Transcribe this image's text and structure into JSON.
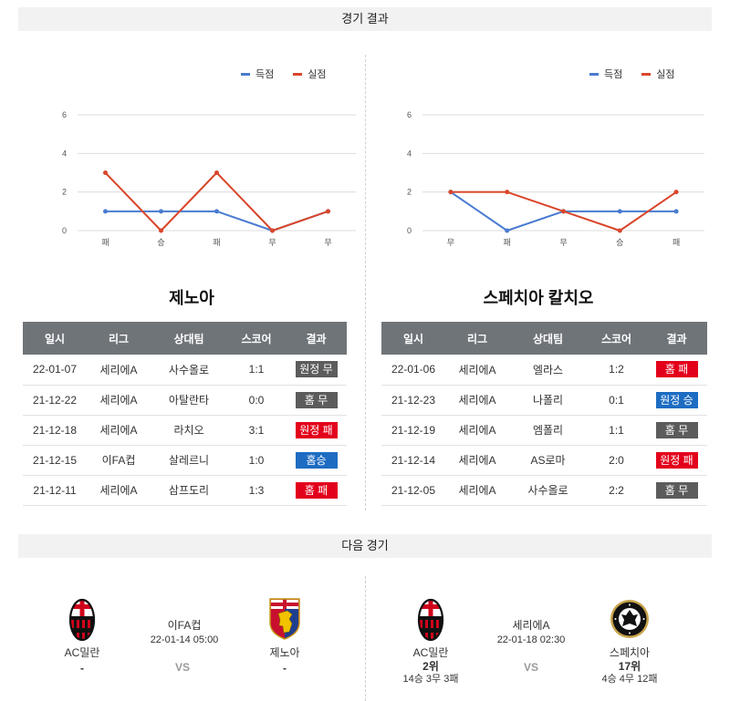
{
  "sections": {
    "results_title": "경기 결과",
    "next_title": "다음 경기"
  },
  "chart_data": [
    {
      "type": "line",
      "categories": [
        "패",
        "승",
        "패",
        "무",
        "무"
      ],
      "series": [
        {
          "name": "득점",
          "values": [
            1,
            1,
            1,
            0,
            1
          ],
          "color": "#4a7bd0"
        },
        {
          "name": "실점",
          "values": [
            3,
            0,
            3,
            0,
            1
          ],
          "color": "#d9462b"
        }
      ],
      "yticks": [
        0,
        2,
        4,
        6
      ],
      "ylim": [
        0,
        6
      ],
      "grid": true,
      "legend": "top-right"
    },
    {
      "type": "line",
      "categories": [
        "무",
        "패",
        "무",
        "승",
        "패"
      ],
      "series": [
        {
          "name": "득점",
          "values": [
            2,
            0,
            1,
            1,
            1
          ],
          "color": "#4a7bd0"
        },
        {
          "name": "실점",
          "values": [
            2,
            2,
            1,
            0,
            2
          ],
          "color": "#d9462b"
        }
      ],
      "yticks": [
        0,
        2,
        4,
        6
      ],
      "ylim": [
        0,
        6
      ],
      "grid": true,
      "legend": "top-right"
    }
  ],
  "table_headers": [
    "일시",
    "리그",
    "상대팀",
    "스코어",
    "결과"
  ],
  "teams": [
    {
      "name": "제노아",
      "recent": [
        {
          "date": "22-01-07",
          "league": "세리에A",
          "opponent": "사수올로",
          "score": "1:1",
          "result": "원정 무",
          "result_color": "#5c5c5c"
        },
        {
          "date": "21-12-22",
          "league": "세리에A",
          "opponent": "아탈란타",
          "score": "0:0",
          "result": "홈 무",
          "result_color": "#5c5c5c"
        },
        {
          "date": "21-12-18",
          "league": "세리에A",
          "opponent": "라치오",
          "score": "3:1",
          "result": "원정 패",
          "result_color": "#e3001b"
        },
        {
          "date": "21-12-15",
          "league": "이FA컵",
          "opponent": "살레르니",
          "score": "1:0",
          "result": "홈승",
          "result_color": "#1d6cc2"
        },
        {
          "date": "21-12-11",
          "league": "세리에A",
          "opponent": "삼프도리",
          "score": "1:3",
          "result": "홈 패",
          "result_color": "#e3001b"
        }
      ]
    },
    {
      "name": "스페치아 칼치오",
      "recent": [
        {
          "date": "22-01-06",
          "league": "세리에A",
          "opponent": "엘라스",
          "score": "1:2",
          "result": "홈 패",
          "result_color": "#e3001b"
        },
        {
          "date": "21-12-23",
          "league": "세리에A",
          "opponent": "나폴리",
          "score": "0:1",
          "result": "원정 승",
          "result_color": "#1d6cc2"
        },
        {
          "date": "21-12-19",
          "league": "세리에A",
          "opponent": "엠폴리",
          "score": "1:1",
          "result": "홈 무",
          "result_color": "#5c5c5c"
        },
        {
          "date": "21-12-14",
          "league": "세리에A",
          "opponent": "AS로마",
          "score": "2:0",
          "result": "원정 패",
          "result_color": "#e3001b"
        },
        {
          "date": "21-12-05",
          "league": "세리에A",
          "opponent": "사수올로",
          "score": "2:2",
          "result": "홈 무",
          "result_color": "#5c5c5c"
        }
      ]
    }
  ],
  "next_matches": [
    {
      "competition": "이FA컵",
      "datetime": "22-01-14 05:00",
      "vs": "VS",
      "home": {
        "name": "AC밀란",
        "rank": "-",
        "logo": "ac-milan-crest-icon"
      },
      "away": {
        "name": "제노아",
        "rank": "-",
        "logo": "genoa-crest-icon"
      }
    },
    {
      "competition": "세리에A",
      "datetime": "22-01-18 02:30",
      "vs": "VS",
      "home": {
        "name": "AC밀란",
        "rank": "2위",
        "record": "14승 3무 3패",
        "logo": "ac-milan-crest-icon"
      },
      "away": {
        "name": "스페치아",
        "rank": "17위",
        "record": "4승 4무 12패",
        "logo": "spezia-crest-icon"
      }
    }
  ],
  "colors": {
    "section_bar_bg": "#f2f2f2",
    "table_header_bg": "#6f7479",
    "divider": "#cfcfcf",
    "vs_text": "#9a9a9a"
  }
}
